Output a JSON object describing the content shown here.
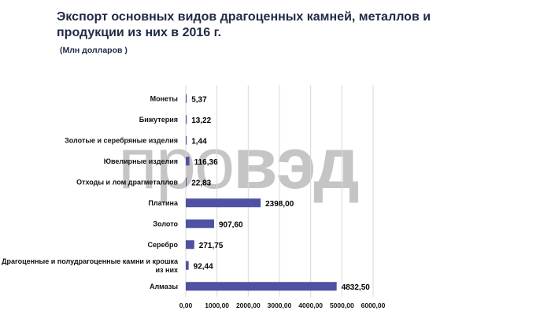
{
  "header": {
    "title": "Экспорт основных видов драгоценных камней, металлов и продукции из них в 2016 г.",
    "subtitle": "(Млн долларов )"
  },
  "watermark": {
    "part1": "про",
    "part2": "вэд"
  },
  "chart_data": {
    "type": "bar",
    "orientation": "horizontal",
    "title": "Экспорт основных видов драгоценных камней, металлов и продукции из них в 2016 г.",
    "subtitle": "(Млн долларов )",
    "categories": [
      "Монеты",
      "Бижутерия",
      "Золотые и серебряные изделия",
      "Ювелирные изделия",
      "Отходы и лом драгметаллов",
      "Платина",
      "Золото",
      "Серебро",
      "Драгоценные и полудрагоценные камни и крошка из них",
      "Алмазы"
    ],
    "category_lines": [
      [
        "Монеты"
      ],
      [
        "Бижутерия"
      ],
      [
        "Золотые и серебряные изделия"
      ],
      [
        "Ювелирные изделия"
      ],
      [
        "Отходы и лом драгметаллов"
      ],
      [
        "Платина"
      ],
      [
        "Золото"
      ],
      [
        "Серебро"
      ],
      [
        "Драгоценные и полудрагоценные камни и крошка",
        "из них"
      ],
      [
        "Алмазы"
      ]
    ],
    "values": [
      5.37,
      13.22,
      1.44,
      116.36,
      22.83,
      2398.0,
      907.6,
      271.75,
      92.44,
      4832.5
    ],
    "value_labels": [
      "5,37",
      "13,22",
      "1,44",
      "116,36",
      "22,83",
      "2398,00",
      "907,60",
      "271,75",
      "92,44",
      "4832,50"
    ],
    "x_ticks": [
      0,
      1000,
      2000,
      3000,
      4000,
      5000,
      6000
    ],
    "x_tick_labels": [
      "0,00",
      "1000,00",
      "2000,00",
      "3000,00",
      "4000,00",
      "5000,00",
      "6000,00"
    ],
    "xlim": [
      0,
      6000
    ],
    "grid": true,
    "bar_color": "#4f51a3"
  }
}
